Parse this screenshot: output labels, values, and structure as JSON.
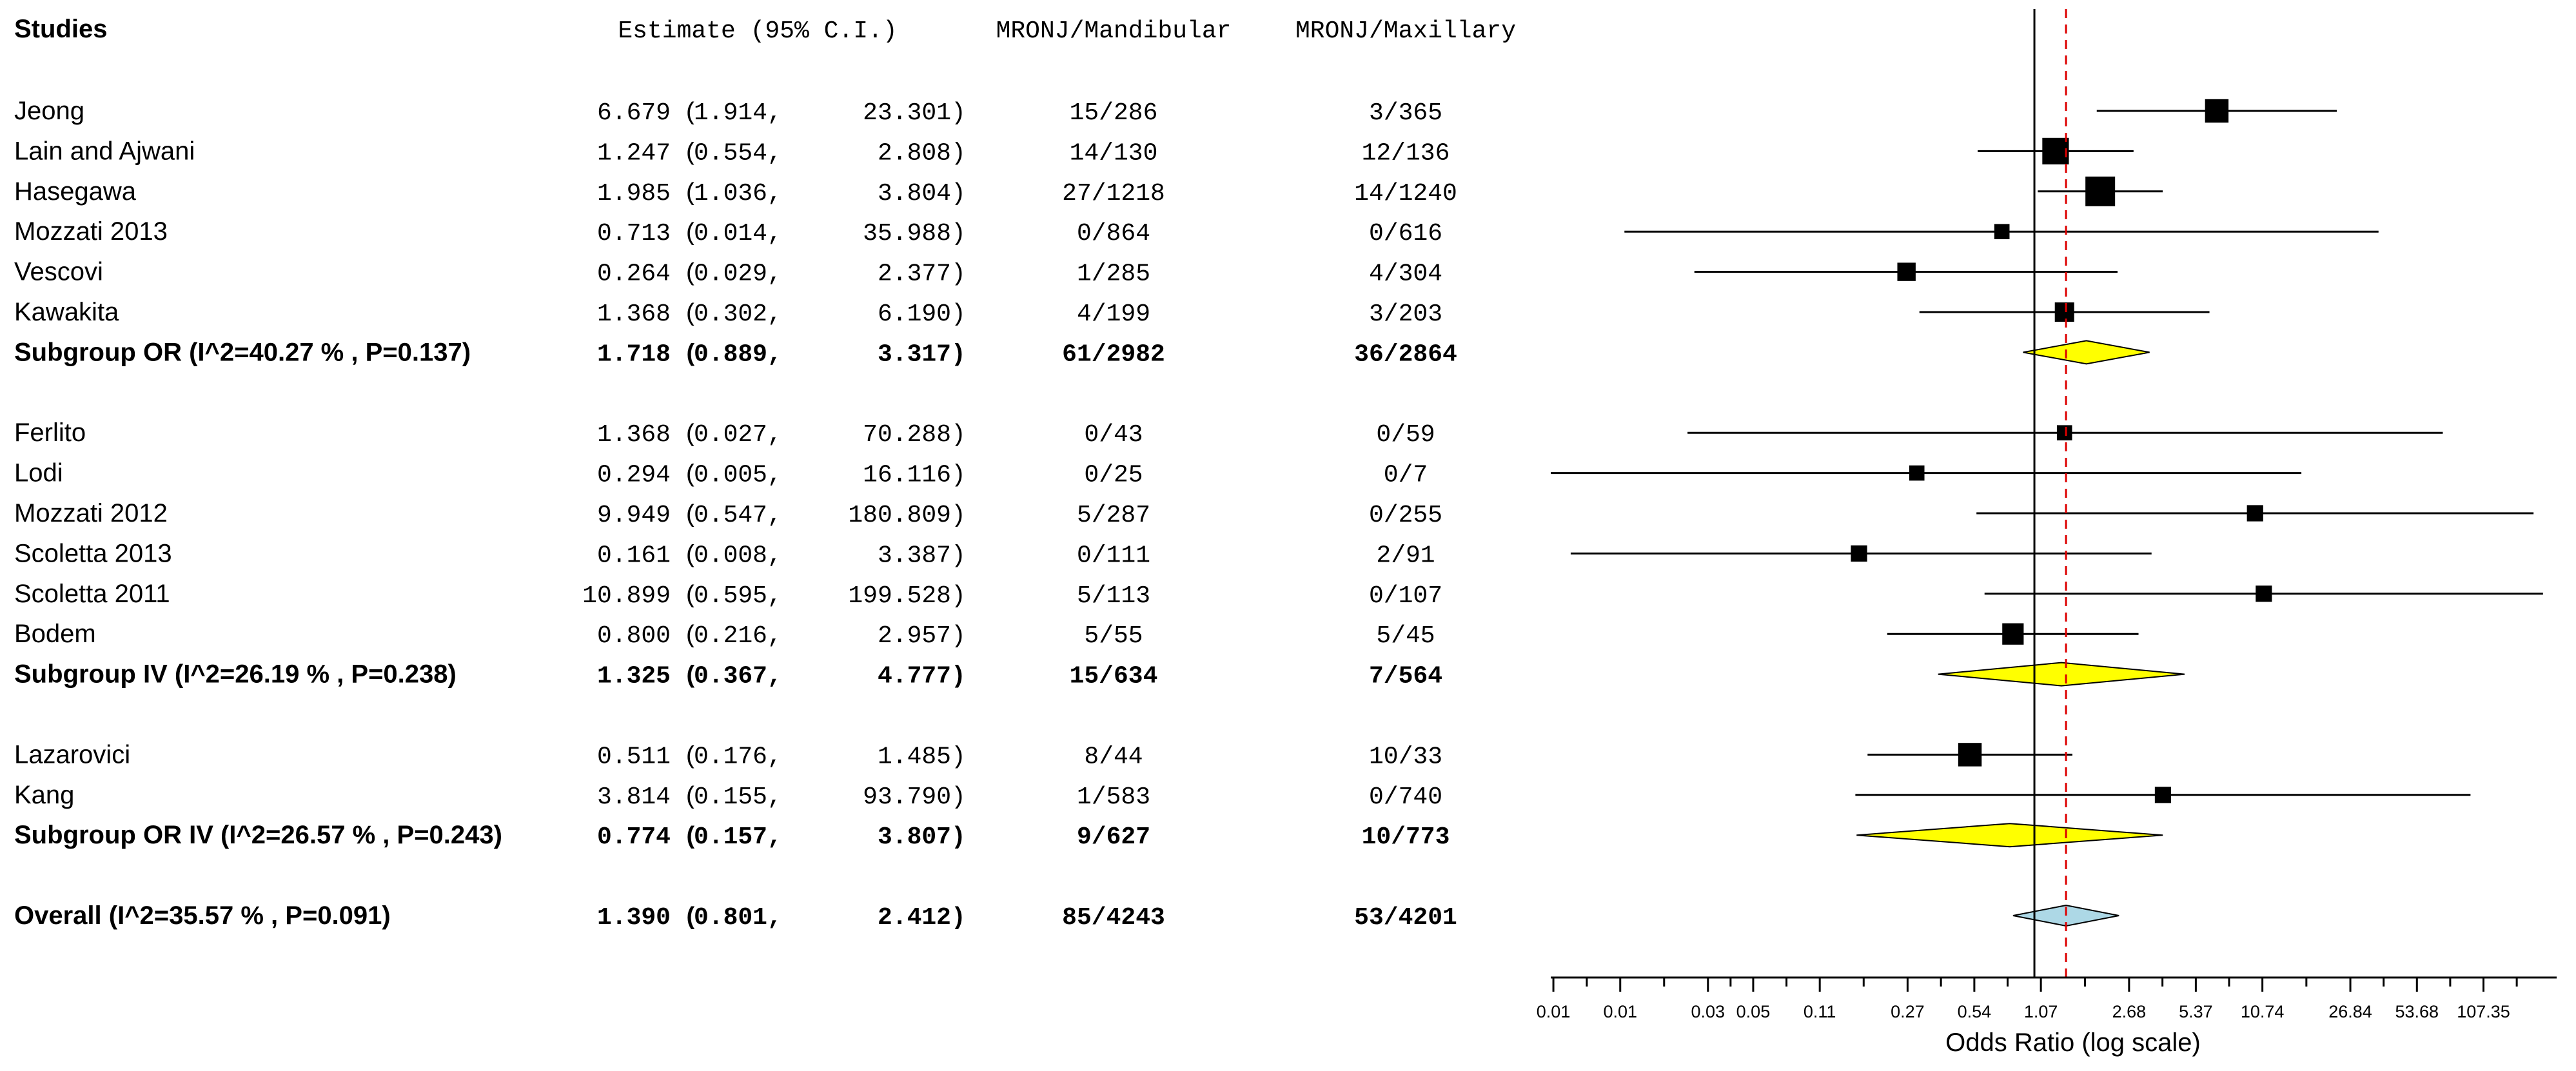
{
  "chart_data": {
    "type": "forest",
    "headers": {
      "studies": "Studies",
      "estimate": "Estimate (95% C.I.)",
      "mandibular": "MRONJ/Mandibular",
      "maxillary": "MRONJ/Maxillary"
    },
    "rows": [
      {
        "kind": "study",
        "label": "Jeong",
        "est": "6.679",
        "lo": "1.914",
        "hi": "23.301",
        "mand": "15/286",
        "max": "3/365",
        "or": 6.679,
        "ci": [
          1.914,
          23.301
        ],
        "weight": 0.7
      },
      {
        "kind": "study",
        "label": "Lain and Ajwani",
        "est": "1.247",
        "lo": "0.554",
        "hi": "2.808",
        "mand": "14/130",
        "max": "12/136",
        "or": 1.247,
        "ci": [
          0.554,
          2.808
        ],
        "weight": 0.85
      },
      {
        "kind": "study",
        "label": "Hasegawa",
        "est": "1.985",
        "lo": "1.036",
        "hi": "3.804",
        "mand": "27/1218",
        "max": "14/1240",
        "or": 1.985,
        "ci": [
          1.036,
          3.804
        ],
        "weight": 1.0
      },
      {
        "kind": "study",
        "label": "Mozzati 2013",
        "est": "0.713",
        "lo": "0.014",
        "hi": "35.988",
        "mand": "0/864",
        "max": "0/616",
        "or": 0.713,
        "ci": [
          0.014,
          35.988
        ],
        "weight": 0.3
      },
      {
        "kind": "study",
        "label": "Vescovi",
        "est": "0.264",
        "lo": "0.029",
        "hi": "2.377",
        "mand": "1/285",
        "max": "4/304",
        "or": 0.264,
        "ci": [
          0.029,
          2.377
        ],
        "weight": 0.45
      },
      {
        "kind": "study",
        "label": "Kawakita",
        "est": "1.368",
        "lo": "0.302",
        "hi": "6.190",
        "mand": "4/199",
        "max": "3/203",
        "or": 1.368,
        "ci": [
          0.302,
          6.19
        ],
        "weight": 0.5
      },
      {
        "kind": "subgroup",
        "label": "Subgroup OR (I^2=40.27 % , P=0.137)",
        "est": "1.718",
        "lo": "0.889",
        "hi": "3.317",
        "mand": "61/2982",
        "max": "36/2864",
        "or": 1.718,
        "ci": [
          0.889,
          3.317
        ],
        "fill": "#ffff00"
      },
      {
        "kind": "blank"
      },
      {
        "kind": "study",
        "label": "Ferlito",
        "est": "1.368",
        "lo": "0.027",
        "hi": "70.288",
        "mand": "0/43",
        "max": "0/59",
        "or": 1.368,
        "ci": [
          0.027,
          70.288
        ],
        "weight": 0.3
      },
      {
        "kind": "study",
        "label": "Lodi",
        "est": "0.294",
        "lo": "0.005",
        "hi": "16.116",
        "mand": "0/25",
        "max": "0/7",
        "or": 0.294,
        "ci": [
          0.005,
          16.116
        ],
        "weight": 0.3
      },
      {
        "kind": "study",
        "label": "Mozzati 2012",
        "est": "9.949",
        "lo": "0.547",
        "hi": "180.809",
        "mand": "5/287",
        "max": "0/255",
        "or": 9.949,
        "ci": [
          0.547,
          180.809
        ],
        "weight": 0.35
      },
      {
        "kind": "study",
        "label": "Scoletta  2013",
        "est": "0.161",
        "lo": "0.008",
        "hi": "3.387",
        "mand": "0/111",
        "max": "2/91",
        "or": 0.161,
        "ci": [
          0.008,
          3.387
        ],
        "weight": 0.35
      },
      {
        "kind": "study",
        "label": "Scoletta  2011",
        "est": "10.899",
        "lo": "0.595",
        "hi": "199.528",
        "mand": "5/113",
        "max": "0/107",
        "or": 10.899,
        "ci": [
          0.595,
          199.528
        ],
        "weight": 0.35
      },
      {
        "kind": "study",
        "label": "Bodem",
        "est": "0.800",
        "lo": "0.216",
        "hi": "2.957",
        "mand": "5/55",
        "max": "5/45",
        "or": 0.8,
        "ci": [
          0.216,
          2.957
        ],
        "weight": 0.6
      },
      {
        "kind": "subgroup",
        "label": "Subgroup IV (I^2=26.19 % , P=0.238)",
        "est": "1.325",
        "lo": "0.367",
        "hi": "4.777",
        "mand": "15/634",
        "max": "7/564",
        "or": 1.325,
        "ci": [
          0.367,
          4.777
        ],
        "fill": "#ffff00"
      },
      {
        "kind": "blank"
      },
      {
        "kind": "study",
        "label": "Lazarovici",
        "est": "0.511",
        "lo": "0.176",
        "hi": "1.485",
        "mand": "8/44",
        "max": "10/33",
        "or": 0.511,
        "ci": [
          0.176,
          1.485
        ],
        "weight": 0.7
      },
      {
        "kind": "study",
        "label": "Kang",
        "est": "3.814",
        "lo": "0.155",
        "hi": "93.790",
        "mand": "1/583",
        "max": "0/740",
        "or": 3.814,
        "ci": [
          0.155,
          93.79
        ],
        "weight": 0.35
      },
      {
        "kind": "subgroup",
        "label": "Subgroup OR IV (I^2=26.57 % , P=0.243)",
        "est": "0.774",
        "lo": "0.157",
        "hi": "3.807",
        "mand": "9/627",
        "max": "10/773",
        "or": 0.774,
        "ci": [
          0.157,
          3.807
        ],
        "fill": "#ffff00"
      },
      {
        "kind": "blank"
      },
      {
        "kind": "overall",
        "label": "Overall (I^2=35.57 % , P=0.091)",
        "est": "1.390",
        "lo": "0.801",
        "hi": "2.412",
        "mand": "85/4243",
        "max": "53/4201",
        "or": 1.39,
        "ci": [
          0.801,
          2.412
        ],
        "fill": "#add8e6"
      }
    ],
    "x_axis": {
      "label": "Odds Ratio (log scale)",
      "scale": "log",
      "range": [
        0.0065,
        230
      ],
      "ticks": [
        0.00668,
        0.0134,
        0.0334,
        0.0535,
        0.107,
        0.267,
        0.535,
        1.07,
        2.68,
        5.37,
        10.74,
        26.84,
        53.68,
        107.35
      ],
      "tick_labels": [
        "0.01",
        "0.01",
        "0.03",
        "0.05",
        "0.11",
        "0.27",
        "0.54",
        "1.07",
        "2.68",
        "5.37",
        "10.74",
        "26.84",
        "53.68",
        "107.35"
      ]
    },
    "null_line": 1,
    "overall_line": 1.39,
    "overall_line_color": "#dd0000"
  }
}
